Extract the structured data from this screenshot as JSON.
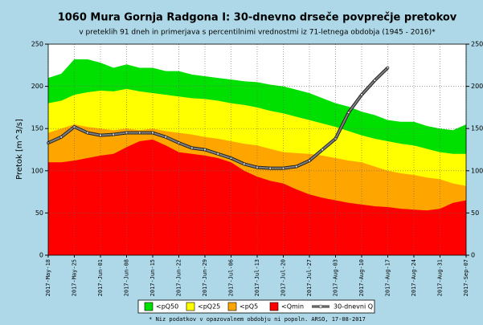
{
  "chart_data": {
    "type": "area",
    "title": "1060 Mura Gornja Radgona I: 30-dnevno drseče povprečje pretokov",
    "subtitle": "v preteklih 91 dneh in primerjava s percentilnimi vrednostmi iz 71-letnega obdobja (1945 - 2016)*",
    "y_label": "Pretok [m^3/s]",
    "footnote": "* Niz podatkov v opazovalnem obdobju ni popoln. ARSO, 17-08-2017",
    "categories": [
      "2017-May-18",
      null,
      "2017-May-25",
      null,
      "2017-Jun-01",
      null,
      "2017-Jun-08",
      null,
      "2017-Jun-15",
      null,
      "2017-Jun-22",
      null,
      "2017-Jun-29",
      null,
      "2017-Jul-06",
      null,
      "2017-Jul-13",
      null,
      "2017-Jul-20",
      null,
      "2017-Jul-27",
      null,
      "2017-Aug-03",
      null,
      "2017-Aug-10",
      null,
      "2017-Aug-17",
      null,
      "2017-Aug-24",
      null,
      "2017-Aug-31",
      null,
      "2017-Sep-07"
    ],
    "series": [
      {
        "name": "<pQ50",
        "color": "#00e000",
        "values": [
          210,
          215,
          232,
          232,
          228,
          222,
          226,
          222,
          222,
          218,
          218,
          214,
          212,
          210,
          208,
          206,
          205,
          202,
          200,
          196,
          192,
          186,
          180,
          176,
          170,
          166,
          160,
          158,
          158,
          153,
          150,
          148,
          155
        ]
      },
      {
        "name": "<pQ25",
        "color": "#ffff00",
        "values": [
          180,
          183,
          190,
          193,
          195,
          194,
          197,
          194,
          192,
          190,
          188,
          186,
          185,
          183,
          180,
          178,
          175,
          171,
          168,
          164,
          160,
          156,
          152,
          147,
          142,
          138,
          135,
          132,
          130,
          126,
          122,
          120,
          120
        ]
      },
      {
        "name": "<pQ5",
        "color": "#ffa500",
        "values": [
          145,
          150,
          155,
          152,
          150,
          148,
          150,
          148,
          150,
          147,
          145,
          143,
          140,
          138,
          135,
          132,
          130,
          126,
          122,
          121,
          120,
          118,
          115,
          112,
          110,
          105,
          100,
          97,
          95,
          92,
          90,
          85,
          82
        ]
      },
      {
        "name": "<Qmin",
        "color": "#ff0000",
        "values": [
          110,
          110,
          112,
          115,
          118,
          120,
          128,
          135,
          137,
          130,
          122,
          120,
          118,
          115,
          110,
          100,
          93,
          88,
          85,
          78,
          72,
          68,
          65,
          62,
          60,
          58,
          57,
          55,
          54,
          53,
          55,
          62,
          65
        ]
      },
      {
        "name": "30-dnevni Q",
        "type": "line",
        "color": "#808080",
        "values": [
          133,
          140,
          152,
          145,
          142,
          143,
          145,
          145,
          145,
          140,
          133,
          127,
          125,
          120,
          115,
          108,
          104,
          103,
          103,
          105,
          112,
          125,
          138,
          169,
          190,
          207,
          222,
          null,
          null,
          null,
          null,
          null,
          null
        ]
      }
    ],
    "ylim": [
      0,
      250
    ],
    "yticks": [
      0,
      50,
      100,
      150,
      200,
      250
    ],
    "grid": true
  }
}
